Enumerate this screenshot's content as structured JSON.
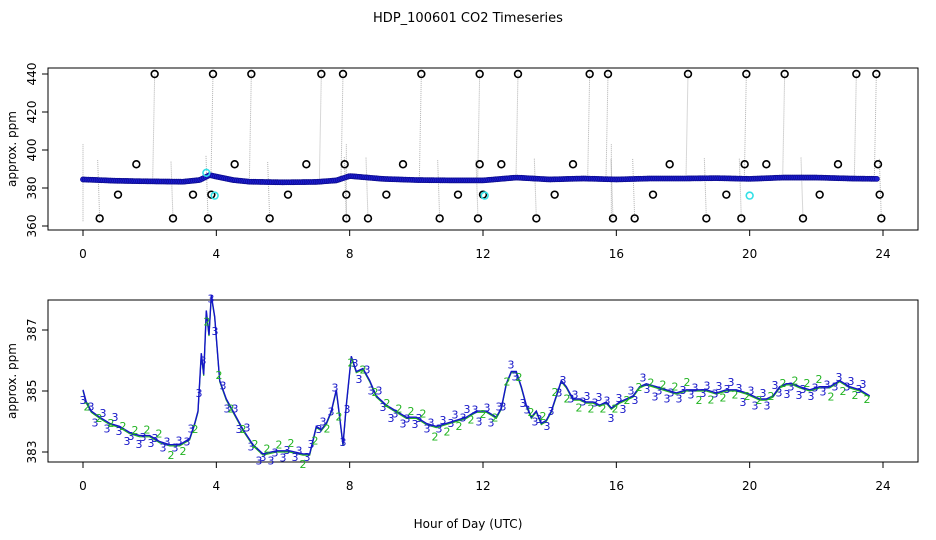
{
  "title": "HDP_100601  CO2 Timeseries",
  "xlabel": "Hour of Day (UTC)",
  "colors": {
    "ring_black": "#000000",
    "ring_cyan": "#33e0e6",
    "dot_blue": "#1c1ccf",
    "label_green": "#22b422",
    "label_blue": "#1414c8",
    "spike_line": "#b0b0b0"
  },
  "chart_data": [
    {
      "type": "scatter",
      "ylabel": "approx. ppm",
      "xlim": [
        0,
        24
      ],
      "ylim": [
        360,
        440
      ],
      "x_ticks": [
        "0",
        "4",
        "8",
        "12",
        "16",
        "20",
        "24"
      ],
      "y_ticks": [
        "360",
        "380",
        "400",
        "420",
        "440"
      ],
      "baseline_series": {
        "x": [
          0,
          1,
          2,
          3,
          3.5,
          3.8,
          4,
          4.5,
          5,
          6,
          7,
          7.6,
          8,
          9,
          10,
          11,
          12,
          13,
          14,
          15,
          16,
          17,
          18,
          19,
          20,
          21,
          22,
          23,
          23.8
        ],
        "y": [
          384.5,
          383.8,
          383.5,
          383.3,
          384.2,
          386.8,
          386,
          384.2,
          383.3,
          383,
          383.2,
          384,
          386.3,
          384.8,
          384.2,
          384,
          384,
          385.5,
          384.5,
          385,
          384.5,
          385,
          385,
          385.2,
          384.8,
          385.5,
          385.5,
          385,
          384.8
        ]
      },
      "high_spikes_x": [
        2.15,
        3.9,
        5.05,
        7.15,
        7.8,
        10.15,
        11.9,
        13.05,
        15.2,
        15.75,
        18.15,
        19.9,
        21.05,
        23.2,
        23.8
      ],
      "low_spikes_x": [
        0.5,
        2.7,
        3.75,
        5.6,
        7.9,
        8.55,
        10.7,
        11.85,
        13.6,
        15.9,
        16.55,
        18.7,
        19.75,
        21.6,
        23.95
      ],
      "mid_high_x": [
        1.6,
        4.55,
        6.7,
        7.85,
        9.6,
        11.9,
        12.55,
        14.7,
        17.6,
        19.85,
        20.5,
        22.65,
        23.85
      ],
      "mid_low_x": [
        1.05,
        3.3,
        3.85,
        6.15,
        7.9,
        9.1,
        11.25,
        12,
        14.15,
        17.1,
        19.3,
        22.1,
        23.9
      ],
      "cyan_marks": {
        "x": [
          3.7,
          3.95,
          12.05,
          20.0
        ],
        "y": [
          388,
          376,
          376,
          376
        ]
      }
    },
    {
      "type": "line",
      "ylabel": "approx. ppm",
      "xlim": [
        0,
        24
      ],
      "ylim": [
        382.5,
        388.3
      ],
      "x_ticks": [
        "0",
        "4",
        "8",
        "12",
        "16",
        "20",
        "24"
      ],
      "y_ticks": [
        "383",
        "385",
        "387"
      ],
      "series": [
        {
          "x": [
            0,
            0.1,
            0.25,
            0.5,
            0.8,
            1.1,
            1.4,
            1.7,
            2.0,
            2.3,
            2.6,
            2.9,
            3.2,
            3.35,
            3.45,
            3.55,
            3.62,
            3.7,
            3.78,
            3.85,
            3.95,
            4.1,
            4.3,
            4.5,
            4.8,
            5.1,
            5.4,
            5.8,
            6.2,
            6.6,
            6.8,
            7.0,
            7.15,
            7.3,
            7.45,
            7.6,
            7.7,
            7.8,
            7.9,
            8.05,
            8.2,
            8.4,
            8.6,
            8.8,
            9.1,
            9.4,
            9.7,
            10.0,
            10.3,
            10.6,
            10.9,
            11.2,
            11.5,
            11.8,
            12.1,
            12.4,
            12.55,
            12.7,
            12.85,
            13.0,
            13.15,
            13.3,
            13.45,
            13.6,
            13.75,
            13.9,
            14.05,
            14.2,
            14.35,
            14.5,
            14.7,
            14.9,
            15.1,
            15.3,
            15.5,
            15.7,
            15.85,
            16.1,
            16.3,
            16.5,
            16.7,
            16.9,
            17.2,
            17.5,
            17.8,
            18.1,
            18.4,
            18.7,
            19.0,
            19.3,
            19.6,
            19.9,
            20.1,
            20.3,
            20.5,
            20.7,
            20.9,
            21.1,
            21.3,
            21.5,
            21.8,
            22.1,
            22.4,
            22.7,
            23.0,
            23.3,
            23.6
          ],
          "y": [
            385,
            384.6,
            384.3,
            384.1,
            383.9,
            383.8,
            383.6,
            383.5,
            383.5,
            383.3,
            383.2,
            383.2,
            383.4,
            383.9,
            384.3,
            386.2,
            385.5,
            387.6,
            386.8,
            388.1,
            387.4,
            385.3,
            384.7,
            384.3,
            383.7,
            383.2,
            382.9,
            383,
            383,
            382.9,
            382.9,
            383.8,
            383.7,
            383.9,
            384.3,
            385,
            384.1,
            383.2,
            384.5,
            386.1,
            385.6,
            385.7,
            385.3,
            384.8,
            384.5,
            384.3,
            384.1,
            384.1,
            383.9,
            383.8,
            383.9,
            384,
            384.1,
            384.3,
            384.3,
            384.1,
            384.4,
            385.2,
            385.6,
            385.6,
            385.1,
            384.5,
            384.1,
            384.3,
            383.9,
            384,
            384.3,
            384.8,
            385.3,
            385.1,
            384.7,
            384.7,
            384.6,
            384.6,
            384.5,
            384.6,
            384.4,
            384.6,
            384.7,
            384.8,
            385.1,
            385.2,
            385.1,
            385,
            384.9,
            385,
            385,
            385,
            384.9,
            385,
            385,
            384.9,
            384.8,
            384.7,
            384.7,
            384.8,
            385.1,
            385.2,
            385.2,
            385.1,
            385,
            385.1,
            385.1,
            385.3,
            385.1,
            385,
            384.8
          ]
        }
      ],
      "marker_labels": [
        "2",
        "3"
      ]
    }
  ]
}
